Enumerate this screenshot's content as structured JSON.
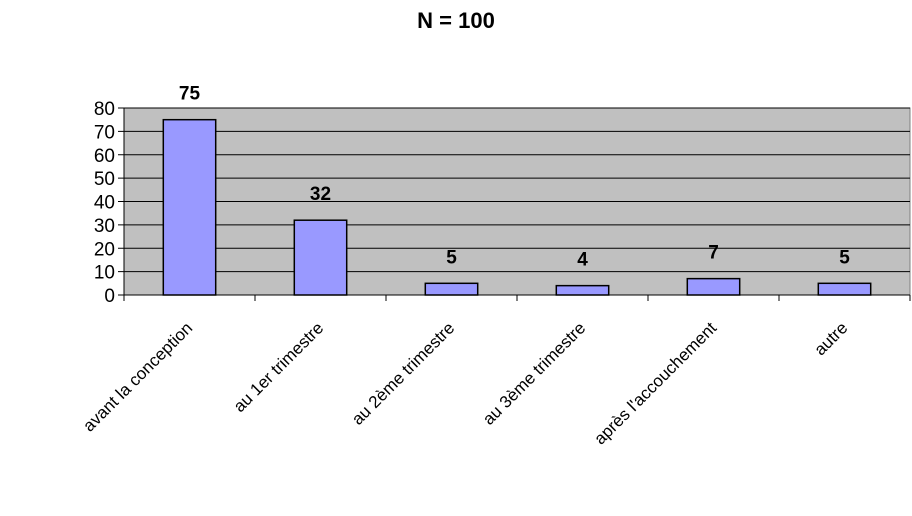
{
  "chart_data": {
    "type": "bar",
    "title": "N = 100",
    "categories": [
      "avant la conception",
      "au 1er trimestre",
      "au 2ème trimestre",
      "au 3ème trimestre",
      "après l'accouchement",
      "autre"
    ],
    "values": [
      75,
      32,
      5,
      4,
      7,
      5
    ],
    "data_labels": [
      "75",
      "32",
      "5",
      "4",
      "7",
      "5"
    ],
    "xlabel": "",
    "ylabel": "",
    "ylim": [
      0,
      80
    ],
    "yticks": [
      0,
      10,
      20,
      30,
      40,
      50,
      60,
      70,
      80
    ],
    "grid": true,
    "legend": "none",
    "colors": {
      "bar_fill": "#9999ff",
      "bar_stroke": "#000000",
      "plot_background": "#c0c0c0",
      "gridline": "#000000"
    }
  }
}
